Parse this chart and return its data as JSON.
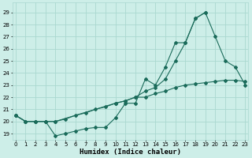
{
  "title": "",
  "xlabel": "Humidex (Indice chaleur)",
  "ylabel": "",
  "bg_color": "#cdeee8",
  "grid_color": "#aad8d0",
  "line_color": "#1a6b5a",
  "x_all": [
    0,
    1,
    2,
    3,
    4,
    5,
    6,
    7,
    8,
    9,
    10,
    11,
    12,
    13,
    14,
    15,
    16,
    17,
    18,
    19,
    20,
    21,
    22,
    23
  ],
  "line1_x": [
    0,
    1,
    2,
    3,
    4,
    5,
    6,
    7,
    8,
    9,
    10,
    11,
    12,
    13,
    14,
    15,
    16,
    17,
    18,
    19,
    20,
    21,
    22,
    23
  ],
  "line1_y": [
    20.5,
    20.0,
    20.0,
    20.0,
    18.8,
    19.0,
    19.2,
    19.4,
    19.5,
    19.5,
    20.3,
    21.5,
    21.5,
    23.5,
    23.0,
    24.5,
    26.5,
    26.5,
    28.5,
    29.0,
    27.0,
    25.0,
    24.5,
    23.0
  ],
  "line2_x": [
    0,
    1,
    2,
    3,
    4,
    10,
    11,
    12,
    13,
    14,
    15,
    16,
    17,
    18,
    19
  ],
  "line2_y": [
    20.5,
    20.0,
    20.0,
    20.0,
    20.0,
    21.5,
    21.7,
    22.0,
    22.5,
    22.8,
    23.5,
    25.0,
    26.5,
    28.5,
    29.0
  ],
  "line3_x": [
    0,
    1,
    2,
    3,
    4,
    5,
    6,
    7,
    8,
    9,
    10,
    11,
    12,
    13,
    14,
    15,
    16,
    17,
    18,
    19,
    20,
    21,
    22,
    23
  ],
  "line3_y": [
    20.5,
    20.0,
    20.0,
    20.0,
    20.0,
    20.2,
    20.5,
    20.7,
    21.0,
    21.2,
    21.5,
    21.7,
    22.0,
    22.0,
    22.3,
    22.5,
    22.8,
    23.0,
    23.1,
    23.2,
    23.3,
    23.4,
    23.4,
    23.3
  ],
  "ylim": [
    18.5,
    29.8
  ],
  "xlim": [
    -0.3,
    23.3
  ],
  "yticks": [
    19,
    20,
    21,
    22,
    23,
    24,
    25,
    26,
    27,
    28,
    29
  ],
  "xticks": [
    0,
    1,
    2,
    3,
    4,
    5,
    6,
    7,
    8,
    9,
    10,
    11,
    12,
    13,
    14,
    15,
    16,
    17,
    18,
    19,
    20,
    21,
    22,
    23
  ],
  "tick_fontsize": 5.0,
  "label_fontsize": 6.5,
  "markersize": 2.0,
  "linewidth": 0.8
}
